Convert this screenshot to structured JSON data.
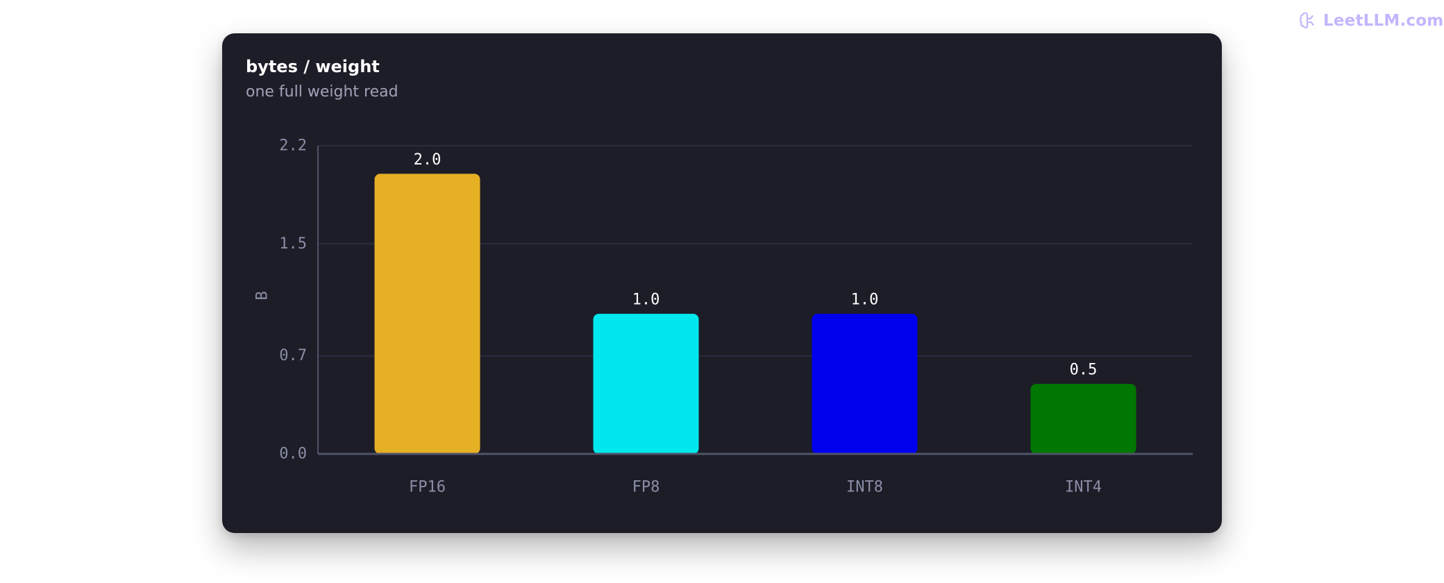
{
  "brand": {
    "name": "LeetLLM.com",
    "icon": "brain-icon",
    "color": "#c4b5fd"
  },
  "chart_data": {
    "type": "bar",
    "title": "bytes / weight",
    "subtitle": "one full weight read",
    "xlabel": "",
    "ylabel": "B",
    "categories": [
      "FP16",
      "FP8",
      "INT8",
      "INT4"
    ],
    "values": [
      2.0,
      1.0,
      1.0,
      0.5
    ],
    "value_labels": [
      "2.0",
      "1.0",
      "1.0",
      "0.5"
    ],
    "colors": [
      "#e6b025",
      "#00e8ee",
      "#0000ee",
      "#007700"
    ],
    "ylim": [
      0,
      2.2
    ],
    "y_ticks": [
      0.0,
      0.7,
      1.5,
      2.2
    ],
    "y_tick_labels": [
      "0.0",
      "0.7",
      "1.5",
      "2.2"
    ],
    "grid": true,
    "legend": "none"
  },
  "theme": {
    "card_background": "#1d1d28",
    "grid_color": "#2b2d3d",
    "axis_color": "#4f5468"
  }
}
